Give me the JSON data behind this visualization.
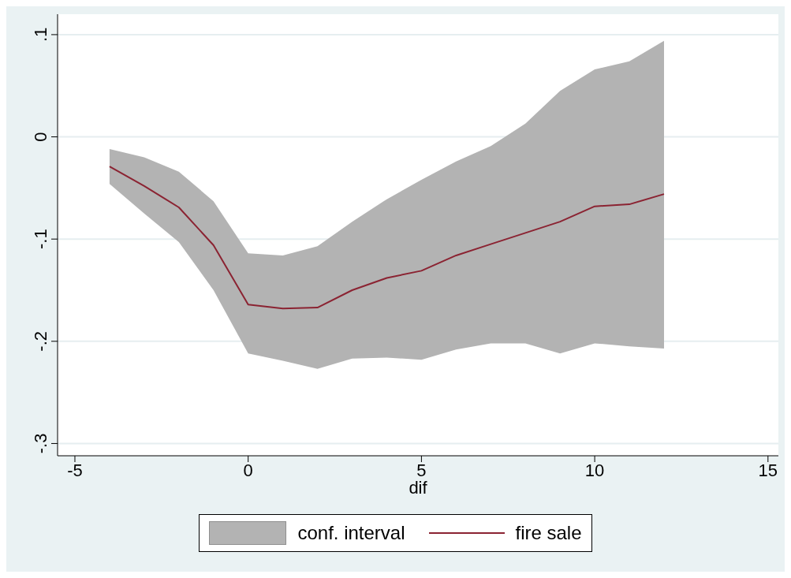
{
  "chart_data": {
    "type": "line",
    "xlabel": "dif",
    "x": [
      -4,
      -3,
      -2,
      -1,
      0,
      1,
      2,
      3,
      4,
      5,
      6,
      7,
      8,
      9,
      10,
      11,
      12
    ],
    "series": [
      {
        "name": "fire sale",
        "color": "#8b2332",
        "values": [
          -0.029,
          -0.048,
          -0.069,
          -0.106,
          -0.164,
          -0.168,
          -0.167,
          -0.15,
          -0.138,
          -0.131,
          -0.116,
          -0.105,
          -0.094,
          -0.083,
          -0.068,
          -0.066,
          -0.056
        ],
        "lower": [
          -0.046,
          -0.075,
          -0.103,
          -0.15,
          -0.212,
          -0.219,
          -0.227,
          -0.217,
          -0.216,
          -0.218,
          -0.208,
          -0.202,
          -0.202,
          -0.212,
          -0.202,
          -0.205,
          -0.207
        ],
        "upper": [
          -0.012,
          -0.02,
          -0.034,
          -0.063,
          -0.114,
          -0.116,
          -0.107,
          -0.083,
          -0.061,
          -0.042,
          -0.024,
          -0.009,
          0.013,
          0.045,
          0.066,
          0.074,
          0.094
        ]
      }
    ],
    "annotations": [
      "conf. interval"
    ],
    "xlim": [
      -5.5,
      15.3
    ],
    "xticks": [
      -5,
      0,
      5,
      10,
      15
    ],
    "ylim": [
      -0.312,
      0.12
    ],
    "yticks": [
      {
        "value": -0.3,
        "label": "-.3"
      },
      {
        "value": -0.2,
        "label": "-.2"
      },
      {
        "value": -0.1,
        "label": "-.1"
      },
      {
        "value": 0,
        "label": "0"
      },
      {
        "value": 0.1,
        "label": ".1"
      }
    ],
    "grid": "y",
    "legend": "bottom",
    "marker": "none",
    "line_style": "solid"
  }
}
